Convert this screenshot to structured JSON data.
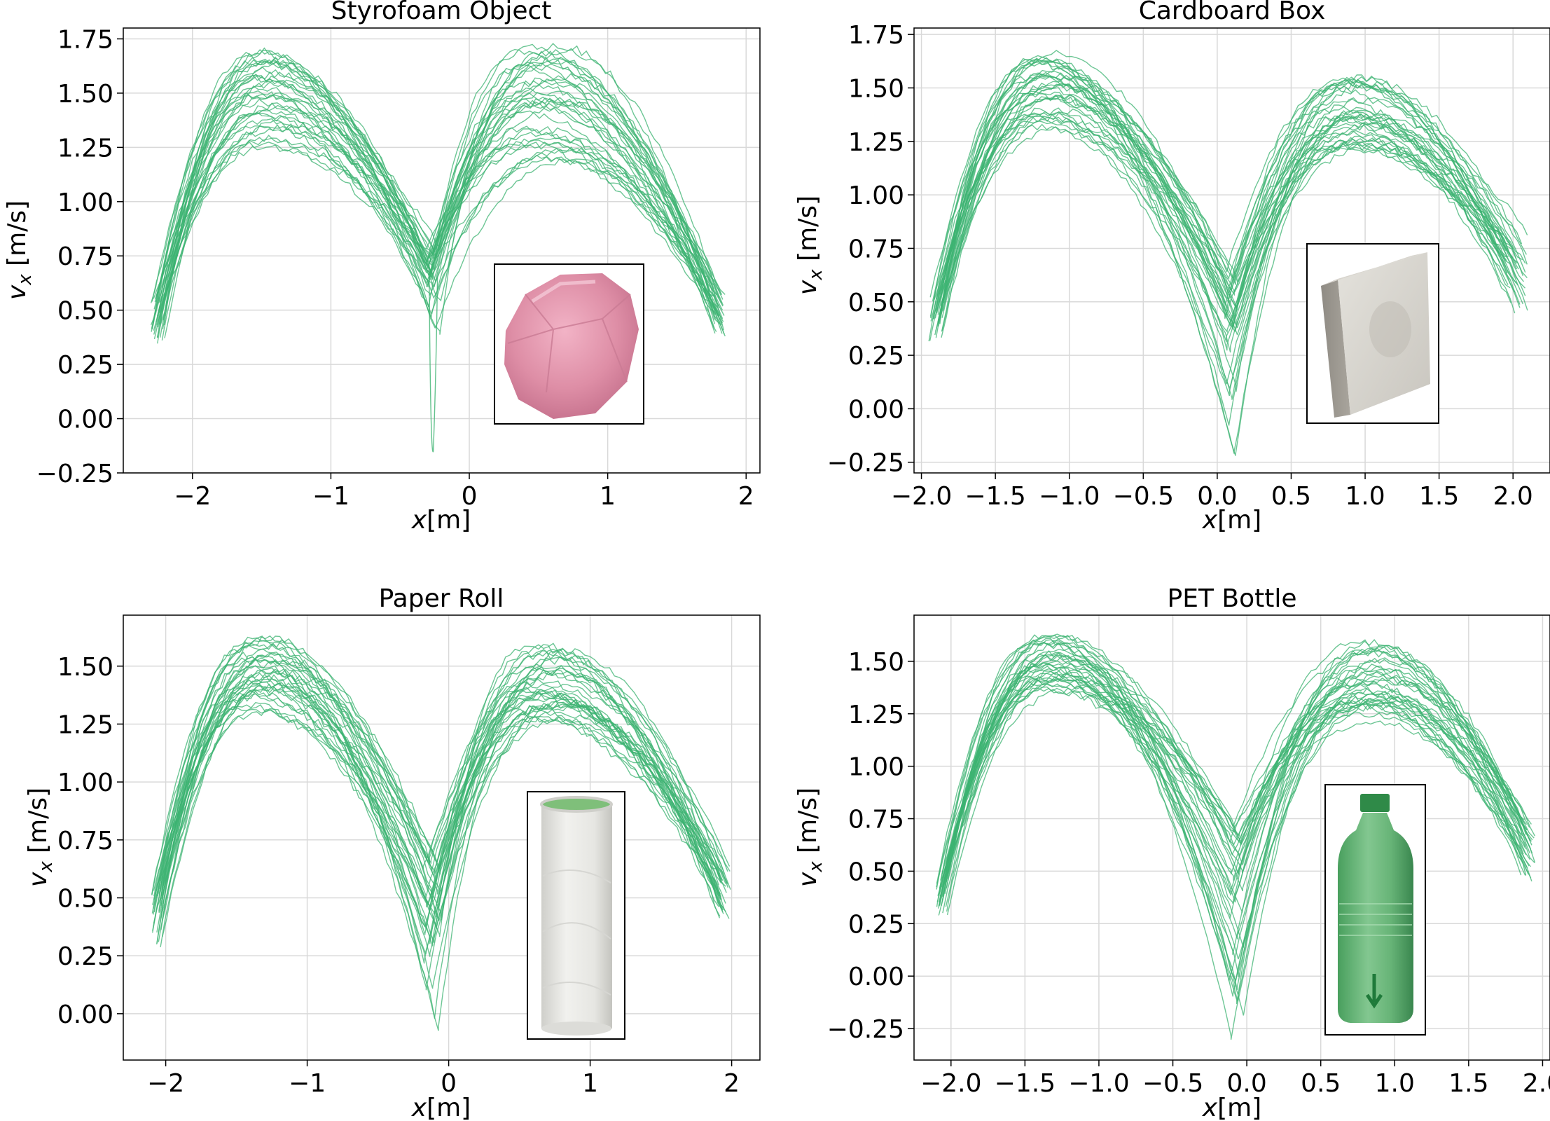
{
  "chart_data": [
    {
      "type": "line",
      "title": "Styrofoam Object",
      "xlabel": "x[m]",
      "ylabel": "v_x [m/s]",
      "xlim": [
        -2.5,
        2.1
      ],
      "ylim": [
        -0.25,
        1.8
      ],
      "xticks": [
        -2,
        -1,
        0,
        1,
        2
      ],
      "xtick_labels": [
        "−2",
        "−1",
        "0",
        "1",
        "2"
      ],
      "yticks": [
        -0.25,
        0,
        0.25,
        0.5,
        0.75,
        1.0,
        1.25,
        1.5,
        1.75
      ],
      "ytick_labels": [
        "−0.25",
        "0.00",
        "0.25",
        "0.50",
        "0.75",
        "1.00",
        "1.25",
        "1.50",
        "1.75"
      ],
      "grid": true,
      "line_color": "#3cb371",
      "inset_image": "pink-styrofoam-object",
      "series_model": {
        "count": 36,
        "x_start": [
          -2.3,
          -2.2
        ],
        "x_end": [
          1.75,
          1.85
        ],
        "x_dip": [
          -0.32,
          -0.2
        ],
        "left_peak": {
          "x": [
            -1.55,
            -1.35
          ],
          "y": [
            1.25,
            1.7
          ]
        },
        "right_peak": {
          "x": [
            0.35,
            0.75
          ],
          "y": [
            1.15,
            1.74
          ]
        },
        "start_y": [
          0.35,
          0.55
        ],
        "end_y": [
          0.38,
          0.6
        ],
        "dip_y": [
          0.38,
          0.8
        ],
        "outlier_dip_y": -0.15
      }
    },
    {
      "type": "line",
      "title": "Cardboard Box",
      "xlabel": "x[m]",
      "ylabel": "v_x [m/s]",
      "xlim": [
        -2.05,
        2.25
      ],
      "ylim": [
        -0.3,
        1.78
      ],
      "xticks": [
        -2.0,
        -1.5,
        -1.0,
        -0.5,
        0.0,
        0.5,
        1.0,
        1.5,
        2.0
      ],
      "xtick_labels": [
        "−2.0",
        "−1.5",
        "−1.0",
        "−0.5",
        "0.0",
        "0.5",
        "1.0",
        "1.5",
        "2.0"
      ],
      "yticks": [
        -0.25,
        0,
        0.25,
        0.5,
        0.75,
        1.0,
        1.25,
        1.5,
        1.75
      ],
      "ytick_labels": [
        "−0.25",
        "0.00",
        "0.25",
        "0.50",
        "0.75",
        "1.00",
        "1.25",
        "1.50",
        "1.75"
      ],
      "grid": true,
      "line_color": "#3cb371",
      "inset_image": "gray-cardboard-box",
      "series_model": {
        "count": 36,
        "x_start": [
          -1.95,
          -1.85
        ],
        "x_end": [
          1.95,
          2.1
        ],
        "x_dip": [
          0.05,
          0.14
        ],
        "left_peak": {
          "x": [
            -1.25,
            -1.05
          ],
          "y": [
            1.3,
            1.68
          ]
        },
        "right_peak": {
          "x": [
            0.8,
            1.05
          ],
          "y": [
            1.2,
            1.55
          ]
        },
        "start_y": [
          0.32,
          0.55
        ],
        "end_y": [
          0.45,
          0.82
        ],
        "dip_y": [
          -0.22,
          0.65
        ]
      }
    },
    {
      "type": "line",
      "title": "Paper Roll",
      "xlabel": "x[m]",
      "ylabel": "v_x [m/s]",
      "xlim": [
        -2.3,
        2.2
      ],
      "ylim": [
        -0.2,
        1.72
      ],
      "xticks": [
        -2,
        -1,
        0,
        1,
        2
      ],
      "xtick_labels": [
        "−2",
        "−1",
        "0",
        "1",
        "2"
      ],
      "yticks": [
        0,
        0.25,
        0.5,
        0.75,
        1.0,
        1.25,
        1.5
      ],
      "ytick_labels": [
        "0.00",
        "0.25",
        "0.50",
        "0.75",
        "1.00",
        "1.25",
        "1.50"
      ],
      "grid": true,
      "line_color": "#3cb371",
      "inset_image": "white-paper-roll",
      "series_model": {
        "count": 36,
        "x_start": [
          -2.1,
          -2.02
        ],
        "x_end": [
          1.9,
          2.0
        ],
        "x_dip": [
          -0.18,
          -0.05
        ],
        "left_peak": {
          "x": [
            -1.45,
            -1.2
          ],
          "y": [
            1.3,
            1.64
          ]
        },
        "right_peak": {
          "x": [
            0.55,
            0.85
          ],
          "y": [
            1.25,
            1.6
          ]
        },
        "start_y": [
          0.3,
          0.55
        ],
        "end_y": [
          0.4,
          0.65
        ],
        "dip_y": [
          -0.15,
          0.7
        ]
      }
    },
    {
      "type": "line",
      "title": "PET Bottle",
      "xlabel": "x[m]",
      "ylabel": "v_x [m/s]",
      "xlim": [
        -2.25,
        2.05
      ],
      "ylim": [
        -0.4,
        1.72
      ],
      "xticks": [
        -2.0,
        -1.5,
        -1.0,
        -0.5,
        0.0,
        0.5,
        1.0,
        1.5,
        2.0
      ],
      "xtick_labels": [
        "−2.0",
        "−1.5",
        "−1.0",
        "−0.5",
        "0.0",
        "0.5",
        "1.0",
        "1.5",
        "2.0"
      ],
      "yticks": [
        -0.25,
        0,
        0.25,
        0.5,
        0.75,
        1.0,
        1.25,
        1.5
      ],
      "ytick_labels": [
        "−0.25",
        "0.00",
        "0.25",
        "0.50",
        "0.75",
        "1.00",
        "1.25",
        "1.50"
      ],
      "grid": true,
      "line_color": "#3cb371",
      "inset_image": "green-pet-bottle",
      "series_model": {
        "count": 36,
        "x_start": [
          -2.1,
          -2.02
        ],
        "x_end": [
          1.85,
          1.95
        ],
        "x_dip": [
          -0.12,
          -0.02
        ],
        "left_peak": {
          "x": [
            -1.4,
            -1.2
          ],
          "y": [
            1.35,
            1.63
          ]
        },
        "right_peak": {
          "x": [
            0.75,
            0.95
          ],
          "y": [
            1.2,
            1.6
          ]
        },
        "start_y": [
          0.28,
          0.5
        ],
        "end_y": [
          0.45,
          0.75
        ],
        "dip_y": [
          -0.3,
          0.72
        ]
      }
    }
  ]
}
